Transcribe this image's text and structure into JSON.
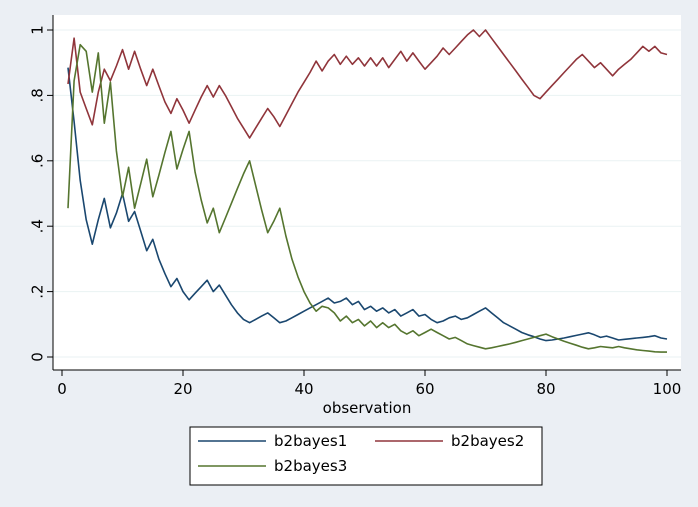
{
  "chart_data": {
    "type": "line",
    "xlabel": "observation",
    "ylabel": "",
    "xlim": [
      0,
      100
    ],
    "ylim": [
      0,
      1
    ],
    "xticks": [
      0,
      20,
      40,
      60,
      80,
      100
    ],
    "yticks": [
      0,
      0.2,
      0.4,
      0.6,
      0.8,
      1
    ],
    "xtick_labels": [
      "0",
      "20",
      "40",
      "60",
      "80",
      "100"
    ],
    "ytick_labels": [
      "0",
      ".2",
      ".4",
      ".6",
      ".8",
      "1"
    ],
    "grid": "horizontal",
    "legend_position": "bottom",
    "series": [
      {
        "name": "b2bayes1",
        "color": "#1a476f",
        "x": [
          1,
          2,
          3,
          4,
          5,
          6,
          7,
          8,
          9,
          10,
          11,
          12,
          13,
          14,
          15,
          16,
          17,
          18,
          19,
          20,
          21,
          22,
          23,
          24,
          25,
          26,
          27,
          28,
          29,
          30,
          31,
          32,
          33,
          34,
          35,
          36,
          37,
          38,
          39,
          40,
          41,
          42,
          43,
          44,
          45,
          46,
          47,
          48,
          49,
          50,
          51,
          52,
          53,
          54,
          55,
          56,
          57,
          58,
          59,
          60,
          61,
          62,
          63,
          64,
          65,
          66,
          67,
          68,
          69,
          70,
          71,
          72,
          73,
          74,
          75,
          76,
          77,
          78,
          79,
          80,
          81,
          82,
          83,
          84,
          85,
          86,
          87,
          88,
          89,
          90,
          91,
          92,
          93,
          94,
          95,
          96,
          97,
          98,
          99,
          100
        ],
        "values": [
          0.885,
          0.72,
          0.54,
          0.42,
          0.345,
          0.42,
          0.485,
          0.395,
          0.44,
          0.5,
          0.415,
          0.445,
          0.385,
          0.325,
          0.36,
          0.3,
          0.255,
          0.215,
          0.24,
          0.2,
          0.175,
          0.195,
          0.215,
          0.235,
          0.2,
          0.22,
          0.19,
          0.16,
          0.135,
          0.115,
          0.105,
          0.115,
          0.125,
          0.135,
          0.12,
          0.105,
          0.11,
          0.12,
          0.13,
          0.14,
          0.15,
          0.16,
          0.17,
          0.18,
          0.165,
          0.17,
          0.18,
          0.16,
          0.17,
          0.145,
          0.155,
          0.14,
          0.15,
          0.135,
          0.145,
          0.125,
          0.135,
          0.145,
          0.125,
          0.13,
          0.115,
          0.105,
          0.11,
          0.12,
          0.125,
          0.115,
          0.12,
          0.13,
          0.14,
          0.15,
          0.135,
          0.12,
          0.105,
          0.095,
          0.085,
          0.075,
          0.068,
          0.062,
          0.055,
          0.05,
          0.052,
          0.055,
          0.058,
          0.062,
          0.066,
          0.07,
          0.074,
          0.068,
          0.06,
          0.064,
          0.058,
          0.052,
          0.054,
          0.056,
          0.058,
          0.06,
          0.062,
          0.065,
          0.058,
          0.055
        ]
      },
      {
        "name": "b2bayes2",
        "color": "#90353b",
        "x": [
          1,
          2,
          3,
          4,
          5,
          6,
          7,
          8,
          9,
          10,
          11,
          12,
          13,
          14,
          15,
          16,
          17,
          18,
          19,
          20,
          21,
          22,
          23,
          24,
          25,
          26,
          27,
          28,
          29,
          30,
          31,
          32,
          33,
          34,
          35,
          36,
          37,
          38,
          39,
          40,
          41,
          42,
          43,
          44,
          45,
          46,
          47,
          48,
          49,
          50,
          51,
          52,
          53,
          54,
          55,
          56,
          57,
          58,
          59,
          60,
          61,
          62,
          63,
          64,
          65,
          66,
          67,
          68,
          69,
          70,
          71,
          72,
          73,
          74,
          75,
          76,
          77,
          78,
          79,
          80,
          81,
          82,
          83,
          84,
          85,
          86,
          87,
          88,
          89,
          90,
          91,
          92,
          93,
          94,
          95,
          96,
          97,
          98,
          99,
          100
        ],
        "values": [
          0.835,
          0.975,
          0.81,
          0.76,
          0.71,
          0.81,
          0.88,
          0.845,
          0.89,
          0.94,
          0.88,
          0.935,
          0.88,
          0.83,
          0.88,
          0.83,
          0.78,
          0.745,
          0.79,
          0.755,
          0.715,
          0.755,
          0.795,
          0.83,
          0.795,
          0.83,
          0.8,
          0.765,
          0.73,
          0.7,
          0.67,
          0.7,
          0.73,
          0.76,
          0.735,
          0.705,
          0.74,
          0.775,
          0.81,
          0.84,
          0.87,
          0.905,
          0.875,
          0.905,
          0.925,
          0.895,
          0.92,
          0.895,
          0.915,
          0.89,
          0.915,
          0.89,
          0.915,
          0.885,
          0.91,
          0.935,
          0.905,
          0.93,
          0.905,
          0.88,
          0.9,
          0.92,
          0.945,
          0.925,
          0.945,
          0.965,
          0.985,
          1.0,
          0.98,
          1.0,
          0.975,
          0.95,
          0.925,
          0.9,
          0.875,
          0.85,
          0.825,
          0.8,
          0.79,
          0.81,
          0.83,
          0.85,
          0.87,
          0.89,
          0.91,
          0.925,
          0.905,
          0.885,
          0.9,
          0.88,
          0.86,
          0.88,
          0.895,
          0.91,
          0.93,
          0.95,
          0.935,
          0.95,
          0.93,
          0.925
        ]
      },
      {
        "name": "b2bayes3",
        "color": "#55752f",
        "x": [
          1,
          2,
          3,
          4,
          5,
          6,
          7,
          8,
          9,
          10,
          11,
          12,
          13,
          14,
          15,
          16,
          17,
          18,
          19,
          20,
          21,
          22,
          23,
          24,
          25,
          26,
          27,
          28,
          29,
          30,
          31,
          32,
          33,
          34,
          35,
          36,
          37,
          38,
          39,
          40,
          41,
          42,
          43,
          44,
          45,
          46,
          47,
          48,
          49,
          50,
          51,
          52,
          53,
          54,
          55,
          56,
          57,
          58,
          59,
          60,
          61,
          62,
          63,
          64,
          65,
          66,
          67,
          68,
          69,
          70,
          71,
          72,
          73,
          74,
          75,
          76,
          77,
          78,
          79,
          80,
          81,
          82,
          83,
          84,
          85,
          86,
          87,
          88,
          89,
          90,
          91,
          92,
          93,
          94,
          95,
          96,
          97,
          98,
          99,
          100
        ],
        "values": [
          0.455,
          0.845,
          0.955,
          0.935,
          0.81,
          0.93,
          0.715,
          0.84,
          0.63,
          0.49,
          0.58,
          0.455,
          0.53,
          0.605,
          0.49,
          0.555,
          0.625,
          0.69,
          0.575,
          0.635,
          0.69,
          0.565,
          0.48,
          0.41,
          0.455,
          0.38,
          0.425,
          0.47,
          0.515,
          0.56,
          0.6,
          0.525,
          0.45,
          0.38,
          0.415,
          0.455,
          0.37,
          0.3,
          0.245,
          0.2,
          0.165,
          0.14,
          0.155,
          0.15,
          0.135,
          0.11,
          0.125,
          0.105,
          0.115,
          0.095,
          0.11,
          0.09,
          0.105,
          0.09,
          0.1,
          0.08,
          0.07,
          0.08,
          0.065,
          0.075,
          0.085,
          0.075,
          0.065,
          0.055,
          0.06,
          0.05,
          0.04,
          0.035,
          0.03,
          0.025,
          0.028,
          0.032,
          0.036,
          0.04,
          0.045,
          0.05,
          0.055,
          0.06,
          0.065,
          0.07,
          0.062,
          0.055,
          0.048,
          0.042,
          0.036,
          0.03,
          0.025,
          0.028,
          0.032,
          0.03,
          0.028,
          0.032,
          0.028,
          0.025,
          0.022,
          0.02,
          0.018,
          0.016,
          0.015,
          0.015
        ]
      }
    ]
  }
}
